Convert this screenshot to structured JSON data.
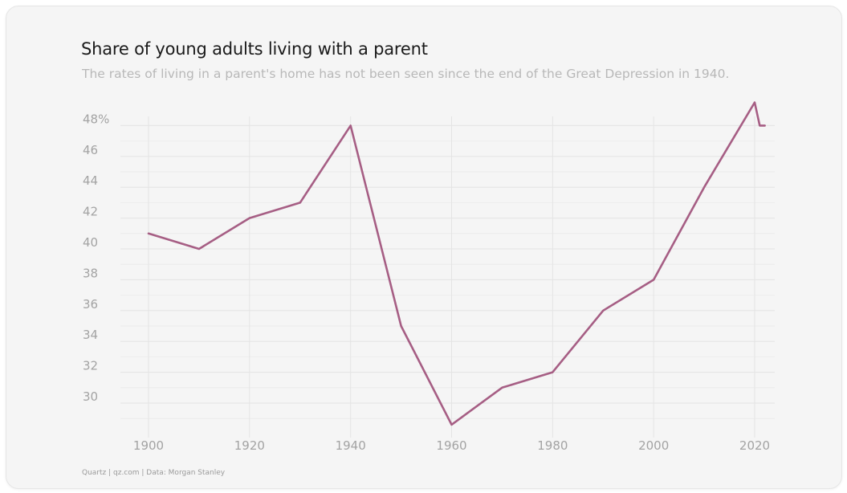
{
  "chart_data": {
    "type": "line",
    "title": "Share of young adults living with a parent",
    "subtitle": "The rates of living in a parent's home has not been seen since the end of the Great Depression in 1940.",
    "source": "Quartz | qz.com | Data: Morgan Stanley",
    "xlabel": "",
    "ylabel": "",
    "xlim": [
      1900,
      2023
    ],
    "ylim": [
      28.5,
      49.5
    ],
    "x_ticks": [
      1900,
      1920,
      1940,
      1960,
      1980,
      2000,
      2020
    ],
    "y_ticks": [
      30,
      32,
      34,
      36,
      38,
      40,
      42,
      44,
      46,
      48
    ],
    "y_tick_labels": [
      "30",
      "32",
      "34",
      "36",
      "38",
      "40",
      "42",
      "44",
      "46",
      "48%"
    ],
    "grid": true,
    "line_color": "#a65e84",
    "series": [
      {
        "x": [
          1900,
          1910,
          1920,
          1930,
          1940,
          1950,
          1960,
          1970,
          1980,
          1990,
          2000,
          2010,
          2020,
          2021,
          2022
        ],
        "y": [
          41,
          40,
          42,
          43,
          48,
          35,
          28.6,
          31,
          32,
          36,
          38,
          44,
          49.5,
          48,
          48
        ]
      }
    ]
  }
}
